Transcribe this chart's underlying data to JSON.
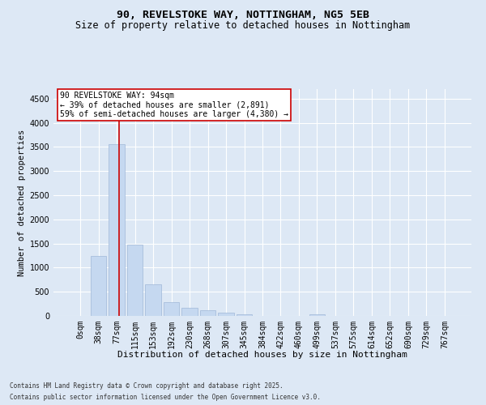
{
  "title1": "90, REVELSTOKE WAY, NOTTINGHAM, NG5 5EB",
  "title2": "Size of property relative to detached houses in Nottingham",
  "xlabel": "Distribution of detached houses by size in Nottingham",
  "ylabel": "Number of detached properties",
  "bar_labels": [
    "0sqm",
    "38sqm",
    "77sqm",
    "115sqm",
    "153sqm",
    "192sqm",
    "230sqm",
    "268sqm",
    "307sqm",
    "345sqm",
    "384sqm",
    "422sqm",
    "460sqm",
    "499sqm",
    "537sqm",
    "575sqm",
    "614sqm",
    "652sqm",
    "690sqm",
    "729sqm",
    "767sqm"
  ],
  "bar_values": [
    0,
    1250,
    3560,
    1480,
    650,
    280,
    160,
    110,
    60,
    30,
    5,
    5,
    0,
    30,
    0,
    0,
    0,
    0,
    0,
    0,
    0
  ],
  "bar_color": "#c5d8f0",
  "bar_edge_color": "#a0b8d8",
  "redline_x": 2.15,
  "annotation_text": "90 REVELSTOKE WAY: 94sqm\n← 39% of detached houses are smaller (2,891)\n59% of semi-detached houses are larger (4,380) →",
  "annotation_box_color": "#ffffff",
  "annotation_border_color": "#cc0000",
  "redline_color": "#cc0000",
  "ylim": [
    0,
    4700
  ],
  "yticks": [
    0,
    500,
    1000,
    1500,
    2000,
    2500,
    3000,
    3500,
    4000,
    4500
  ],
  "background_color": "#dde8f5",
  "footer1": "Contains HM Land Registry data © Crown copyright and database right 2025.",
  "footer2": "Contains public sector information licensed under the Open Government Licence v3.0.",
  "title1_fontsize": 9.5,
  "title2_fontsize": 8.5,
  "xlabel_fontsize": 8,
  "ylabel_fontsize": 7.5,
  "tick_fontsize": 7,
  "annotation_fontsize": 7,
  "footer_fontsize": 5.5
}
